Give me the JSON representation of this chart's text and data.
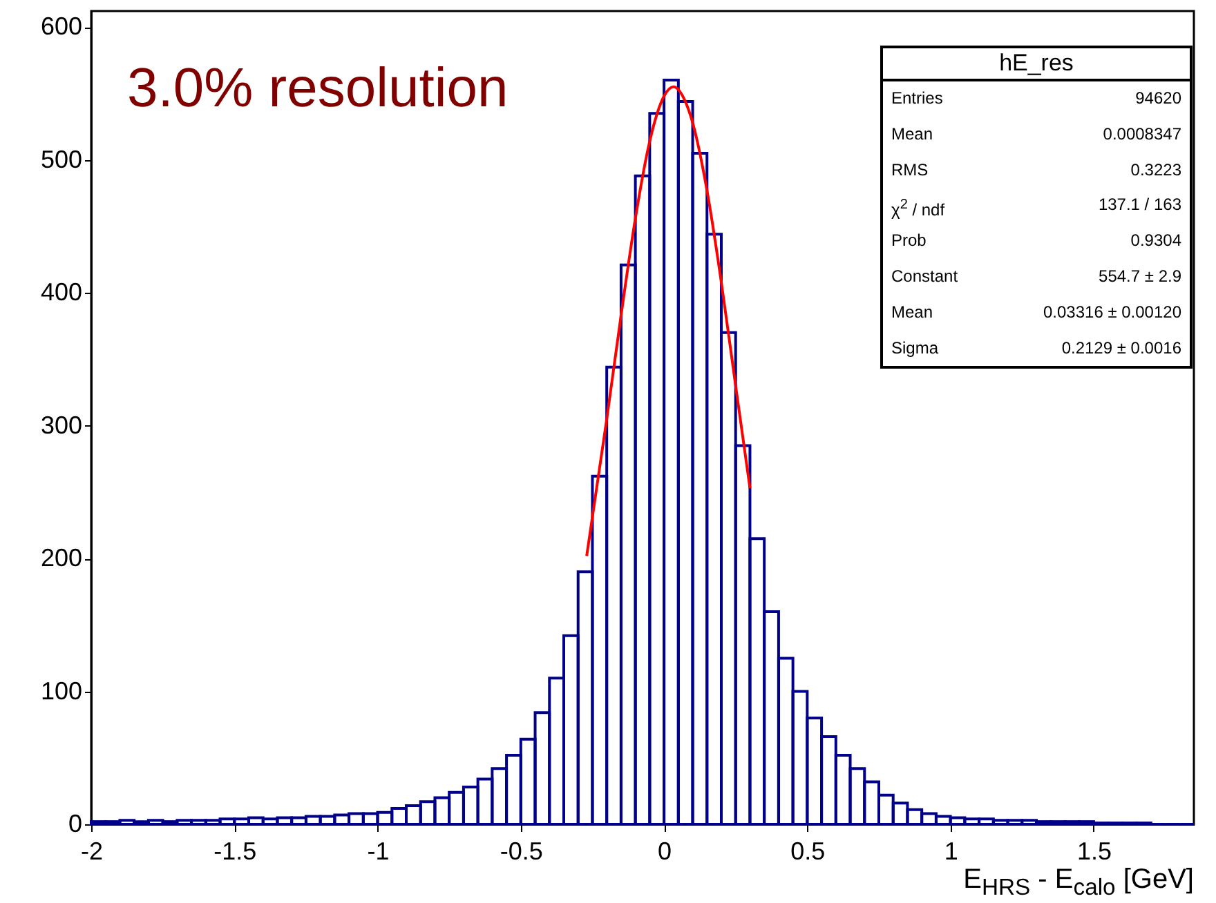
{
  "chart_data": {
    "type": "histogram",
    "xlabel": "E$_{HRS}$ - E$_{calo}$ [GeV]",
    "bins": [
      -2,
      -1.95,
      -1.9,
      -1.85,
      -1.8,
      -1.75,
      -1.7,
      -1.65,
      -1.6,
      -1.55,
      -1.5,
      -1.45,
      -1.4,
      -1.35,
      -1.3,
      -1.25,
      -1.2,
      -1.15,
      -1.1,
      -1.05,
      -1,
      -0.95,
      -0.9,
      -0.85,
      -0.8,
      -0.75,
      -0.7,
      -0.65,
      -0.6,
      -0.55,
      -0.5,
      -0.45,
      -0.4,
      -0.35,
      -0.3,
      -0.25,
      -0.2,
      -0.15,
      -0.1,
      -0.05,
      0,
      0.05,
      0.1,
      0.15,
      0.2,
      0.25,
      0.3,
      0.35,
      0.4,
      0.45,
      0.5,
      0.55,
      0.6,
      0.65,
      0.7,
      0.75,
      0.8,
      0.85,
      0.9,
      0.95,
      1,
      1.05,
      1.1,
      1.15,
      1.2,
      1.25,
      1.3,
      1.35,
      1.4,
      1.45,
      1.5,
      1.55,
      1.6,
      1.65,
      1.7,
      1.75,
      1.8,
      1.85
    ],
    "values": [
      2,
      2,
      3,
      2,
      3,
      2,
      3,
      3,
      3,
      4,
      4,
      5,
      4,
      5,
      5,
      6,
      6,
      7,
      8,
      8,
      9,
      12,
      14,
      17,
      20,
      24,
      28,
      34,
      42,
      52,
      64,
      84,
      110,
      142,
      190,
      262,
      344,
      421,
      488,
      535,
      560,
      544,
      505,
      444,
      370,
      285,
      215,
      160,
      125,
      100,
      80,
      66,
      52,
      42,
      32,
      22,
      16,
      11,
      8,
      6,
      5,
      4,
      4,
      3,
      3,
      3,
      2,
      2,
      2,
      2,
      1,
      1,
      1,
      1,
      0,
      0,
      0
    ],
    "color": "#00008b",
    "series": [
      {
        "type": "line",
        "color": "#ff0000",
        "x": [
          -0.27,
          -0.2,
          -0.15,
          -0.1,
          -0.05,
          0,
          0.033,
          0.07,
          0.1,
          0.15,
          0.2,
          0.25,
          0.3
        ],
        "values": [
          202,
          305,
          383,
          456,
          514,
          548,
          555,
          546,
          528,
          477,
          408,
          330,
          253
        ]
      }
    ],
    "xlim": [
      -2,
      1.85
    ],
    "xticks": [
      -2,
      -1.5,
      -1,
      -0.5,
      0,
      0.5,
      1,
      1.5
    ],
    "ylim": [
      0,
      612
    ],
    "yticks": [
      0,
      100,
      200,
      300,
      400,
      500,
      600
    ],
    "annotations": [
      "3.0% resolution",
      "hE_res",
      "Entries",
      "94620",
      "Mean",
      "0.0008347",
      "RMS",
      "0.3223",
      "χ$^{2}$ / ndf",
      "137.1 / 163",
      "Prob",
      "0.9304",
      "Constant",
      "554.7 ± 2.9",
      "Mean",
      "0.03316 ± 0.00120",
      "Sigma",
      "0.2129 ± 0.0016"
    ]
  }
}
